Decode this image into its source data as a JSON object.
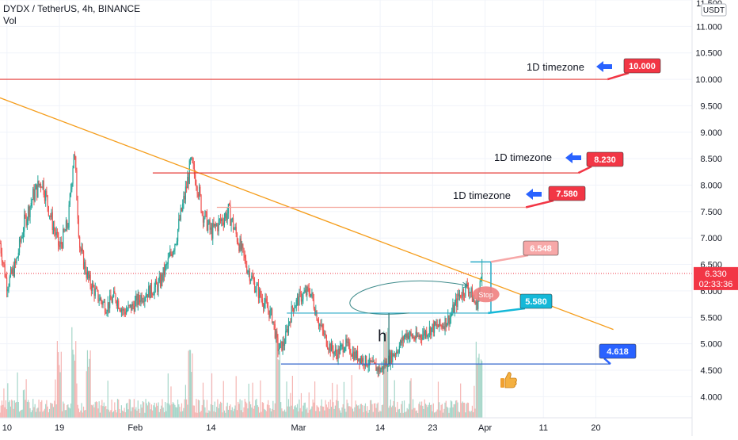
{
  "header": {
    "symbol_line": "DYDX / TetherUS, 4h, BINANCE",
    "vol_label": "Vol"
  },
  "colors": {
    "up": "#26a69a",
    "down": "#ef5350",
    "vol_up": "#a5d6c9",
    "vol_down": "#f5b5b3",
    "trendline": "#f59d1b",
    "red_level": "#e53935",
    "pink_level": "#f4a59b",
    "cyan_level": "#26a9c6",
    "blue_level": "#3366cc",
    "arrow": "#2962ff",
    "badge_red": "#f23645",
    "badge_pink": "#f7a8a8",
    "badge_cyan": "#14b8d8",
    "badge_blue": "#2962ff",
    "price_tag": "#f23645"
  },
  "chart_data": {
    "type": "candlestick",
    "title": "DYDX / TetherUS, 4h, BINANCE",
    "y_axis": {
      "currency": "USDT",
      "ylim": [
        3.6,
        11.5
      ],
      "ticks": [
        11.5,
        11.0,
        10.5,
        10.0,
        9.5,
        9.0,
        8.5,
        8.0,
        7.5,
        7.0,
        6.5,
        6.0,
        5.5,
        5.0,
        4.5,
        4.0
      ],
      "tick_labels": [
        "11.500",
        "11.000",
        "10.500",
        "10.000",
        "9.500",
        "9.000",
        "8.500",
        "8.000",
        "7.500",
        "7.000",
        "6.500",
        "6.000",
        "5.500",
        "5.000",
        "4.500",
        "4.000"
      ]
    },
    "x_axis": {
      "tick_labels": [
        "10",
        "19",
        "Feb",
        "14",
        "Mar",
        "14",
        "23",
        "Apr",
        "11",
        "20"
      ],
      "tick_days": [
        10,
        19,
        32,
        45,
        60,
        74,
        83,
        92,
        102,
        111
      ],
      "range_days": [
        8.8,
        127.5
      ],
      "last_bar_day": 91.5
    },
    "price_path": [
      [
        8.8,
        6.9
      ],
      [
        10.0,
        6.1
      ],
      [
        11.5,
        6.5
      ],
      [
        13.0,
        7.3
      ],
      [
        14.5,
        7.8
      ],
      [
        16.0,
        8.1
      ],
      [
        17.5,
        7.4
      ],
      [
        19.0,
        6.8
      ],
      [
        20.5,
        7.3
      ],
      [
        21.5,
        8.7
      ],
      [
        22.5,
        6.8
      ],
      [
        24.0,
        6.2
      ],
      [
        25.5,
        5.9
      ],
      [
        27.0,
        5.7
      ],
      [
        28.5,
        5.9
      ],
      [
        30.0,
        5.6
      ],
      [
        31.5,
        5.7
      ],
      [
        33.0,
        5.9
      ],
      [
        34.5,
        6.0
      ],
      [
        36.0,
        6.1
      ],
      [
        37.5,
        6.5
      ],
      [
        39.0,
        7.0
      ],
      [
        40.5,
        7.8
      ],
      [
        41.5,
        8.4
      ],
      [
        42.5,
        8.1
      ],
      [
        43.5,
        7.5
      ],
      [
        45.0,
        7.1
      ],
      [
        46.5,
        7.3
      ],
      [
        48.0,
        7.5
      ],
      [
        49.5,
        7.0
      ],
      [
        51.0,
        6.5
      ],
      [
        52.5,
        6.1
      ],
      [
        54.0,
        5.8
      ],
      [
        55.5,
        5.5
      ],
      [
        56.5,
        4.9
      ],
      [
        57.5,
        5.0
      ],
      [
        59.0,
        5.7
      ],
      [
        60.5,
        5.9
      ],
      [
        62.0,
        6.0
      ],
      [
        63.5,
        5.4
      ],
      [
        65.0,
        5.0
      ],
      [
        66.5,
        4.8
      ],
      [
        68.0,
        5.0
      ],
      [
        69.5,
        4.8
      ],
      [
        71.0,
        4.7
      ],
      [
        72.5,
        4.6
      ],
      [
        74.0,
        4.5
      ],
      [
        75.5,
        4.7
      ],
      [
        77.0,
        4.9
      ],
      [
        78.5,
        5.2
      ],
      [
        80.0,
        5.1
      ],
      [
        81.5,
        5.2
      ],
      [
        83.0,
        5.3
      ],
      [
        84.5,
        5.35
      ],
      [
        86.0,
        5.5
      ],
      [
        87.5,
        5.9
      ],
      [
        89.0,
        6.1
      ],
      [
        90.5,
        5.7
      ],
      [
        91.5,
        6.33
      ]
    ],
    "volume_spikes_days": [
      19.0,
      21.5,
      24.0,
      41.5,
      56.5,
      75.0,
      90.8,
      91.4
    ],
    "current_price": "6.330",
    "countdown": "02:33:36",
    "trendline": {
      "from": [
        8.8,
        9.65
      ],
      "to": [
        114.0,
        5.27
      ]
    },
    "levels": [
      {
        "price": 10.0,
        "x_from": 8.8,
        "x_to": 113.0,
        "color_key": "red_level",
        "label": "1D timezone",
        "badge": "10.000",
        "badge_color_key": "badge_red"
      },
      {
        "price": 8.23,
        "x_from": 35.0,
        "x_to": 108.0,
        "color_key": "red_level",
        "label": "1D timezone",
        "badge": "8.230",
        "badge_color_key": "badge_red"
      },
      {
        "price": 7.58,
        "x_from": 46.0,
        "x_to": 99.0,
        "color_key": "pink_level",
        "label": "1D timezone",
        "badge": "7.580",
        "badge_color_key": "badge_red"
      },
      {
        "price": 5.58,
        "x_from": 58.0,
        "x_to": 92.5,
        "color_key": "cyan_level",
        "label": "",
        "badge": "5.580",
        "badge_color_key": "badge_cyan"
      },
      {
        "price": 4.618,
        "x_from": 57.0,
        "x_to": 113.5,
        "color_key": "blue_level",
        "label": "",
        "badge": "4.618",
        "badge_color_key": "badge_blue"
      }
    ],
    "target_box": {
      "price": 6.548,
      "x_from": 89.5,
      "x_to": 93.0,
      "badge": "6.548"
    },
    "stop_label": "Stop",
    "stop_point": [
      91.6,
      5.95
    ],
    "height_label": "h",
    "height_marker": {
      "day": 75.5,
      "from": 5.58,
      "to": 4.618
    },
    "curve_arrow": {
      "from": [
        79.0,
        5.58
      ],
      "via1": [
        60.0,
        5.4
      ],
      "via2": [
        70.0,
        6.5
      ],
      "to": [
        89.0,
        6.1
      ]
    }
  }
}
